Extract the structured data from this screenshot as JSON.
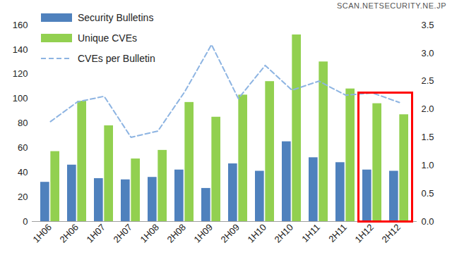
{
  "chart_data": {
    "type": "bar",
    "annotation": "SCAN.NETSECURITY.NE.JP",
    "categories": [
      "1H06",
      "2H06",
      "1H07",
      "2H07",
      "1H08",
      "2H08",
      "1H09",
      "2H09",
      "1H10",
      "2H10",
      "1H11",
      "2H11",
      "1H12",
      "2H12"
    ],
    "series": [
      {
        "name": "Security Bulletins",
        "type": "bar",
        "color": "#4f81bd",
        "values": [
          32,
          46,
          35,
          34,
          36,
          42,
          27,
          47,
          41,
          65,
          52,
          48,
          42,
          41
        ]
      },
      {
        "name": "Unique CVEs",
        "type": "bar",
        "color": "#92d050",
        "values": [
          57,
          98,
          78,
          51,
          58,
          97,
          85,
          103,
          114,
          152,
          130,
          108,
          96,
          87
        ]
      },
      {
        "name": "CVEs per Bulletin",
        "type": "line",
        "axis": "y2",
        "color": "#8db4e2",
        "line_style": "dashed",
        "values": [
          1.78,
          2.13,
          2.23,
          1.5,
          1.61,
          2.31,
          3.15,
          2.19,
          2.78,
          2.34,
          2.5,
          2.25,
          2.29,
          2.12
        ]
      }
    ],
    "ylim": [
      0,
      160
    ],
    "yticks": [
      0,
      20,
      40,
      60,
      80,
      100,
      120,
      140,
      160
    ],
    "y2lim": [
      0,
      3.5
    ],
    "y2ticks": [
      {
        "value": 0,
        "label": "0.0"
      },
      {
        "value": 0.5,
        "label": "0.5"
      },
      {
        "value": 1,
        "label": "1.0"
      },
      {
        "value": 1.5,
        "label": "1.5"
      },
      {
        "value": 2,
        "label": "2.0"
      },
      {
        "value": 2.5,
        "label": "2.5"
      },
      {
        "value": 3,
        "label": "3.0"
      },
      {
        "value": 3.5,
        "label": "3.5"
      }
    ],
    "highlight": [
      "1H12",
      "2H12"
    ],
    "legend": "top-left",
    "grid": false
  }
}
